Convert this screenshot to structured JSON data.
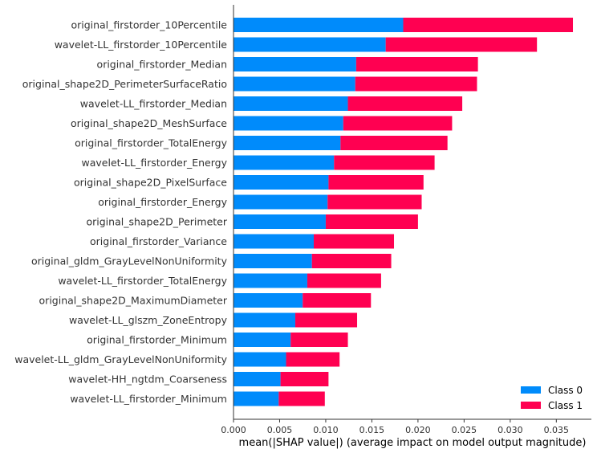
{
  "chart_data": {
    "type": "bar",
    "orientation": "horizontal",
    "stacked": true,
    "categories": [
      "original_firstorder_10Percentile",
      "wavelet-LL_firstorder_10Percentile",
      "original_firstorder_Median",
      "original_shape2D_PerimeterSurfaceRatio",
      "wavelet-LL_firstorder_Median",
      "original_shape2D_MeshSurface",
      "original_firstorder_TotalEnergy",
      "wavelet-LL_firstorder_Energy",
      "original_shape2D_PixelSurface",
      "original_firstorder_Energy",
      "original_shape2D_Perimeter",
      "original_firstorder_Variance",
      "original_gldm_GrayLevelNonUniformity",
      "wavelet-LL_firstorder_TotalEnergy",
      "original_shape2D_MaximumDiameter",
      "wavelet-LL_glszm_ZoneEntropy",
      "original_firstorder_Minimum",
      "wavelet-LL_gldm_GrayLevelNonUniformity",
      "wavelet-HH_ngtdm_Coarseness",
      "wavelet-LL_firstorder_Minimum"
    ],
    "series": [
      {
        "name": "Class 0",
        "color": "#008bfb",
        "values": [
          0.0184,
          0.0165,
          0.0133,
          0.0132,
          0.0124,
          0.0119,
          0.0116,
          0.0109,
          0.0103,
          0.0102,
          0.01,
          0.0087,
          0.0085,
          0.008,
          0.0075,
          0.0067,
          0.0062,
          0.0057,
          0.0051,
          0.0049
        ]
      },
      {
        "name": "Class 1",
        "color": "#ff0051",
        "values": [
          0.0184,
          0.0164,
          0.0132,
          0.0132,
          0.0124,
          0.0118,
          0.0116,
          0.0109,
          0.0103,
          0.0102,
          0.01,
          0.0087,
          0.0086,
          0.008,
          0.0074,
          0.0067,
          0.0062,
          0.0058,
          0.0052,
          0.005
        ]
      }
    ],
    "xlabel": "mean(|SHAP value|) (average impact on model output magnitude)",
    "ylabel": "",
    "xlim": [
      0,
      0.0388
    ],
    "xticks": [
      0,
      0.005,
      0.01,
      0.015,
      0.02,
      0.025,
      0.03,
      0.035
    ],
    "xtick_labels": [
      "0.000",
      "0.005",
      "0.010",
      "0.015",
      "0.020",
      "0.025",
      "0.030",
      "0.035"
    ],
    "grid": false,
    "legend": {
      "position": "bottom-right",
      "entries": [
        "Class 0",
        "Class 1"
      ]
    }
  }
}
